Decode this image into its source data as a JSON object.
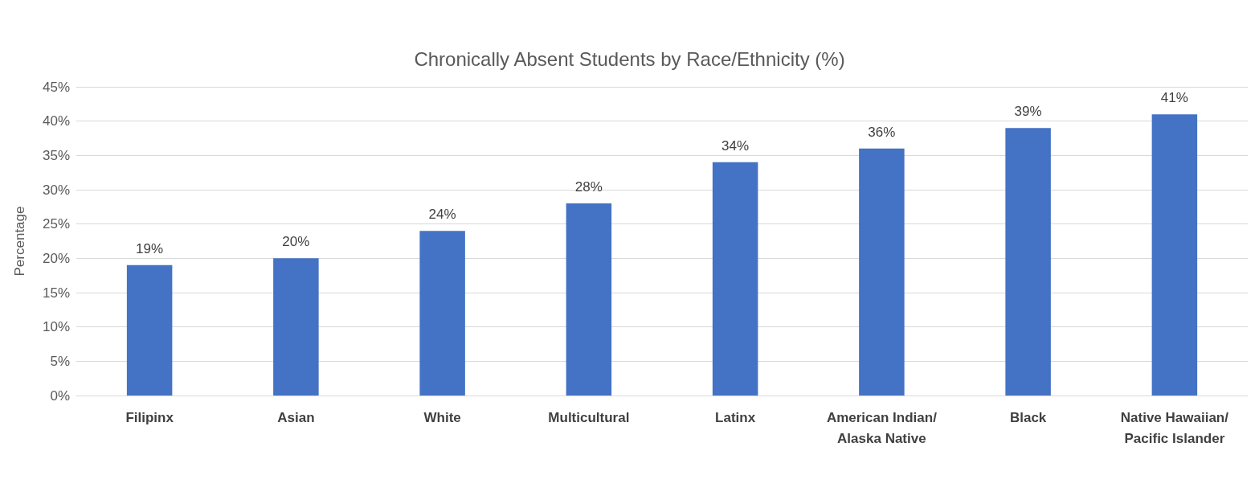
{
  "chart_data": {
    "type": "bar",
    "title": "Chronically Absent Students by Race/Ethnicity (%)",
    "ylabel": "Percentage",
    "categories": [
      "Filipinx",
      "Asian",
      "White",
      "Multicultural",
      "Latinx",
      "American Indian/Alaska Native",
      "Black",
      "Native Hawaiian/Pacific Islander"
    ],
    "values": [
      19,
      20,
      24,
      28,
      34,
      36,
      39,
      41
    ],
    "value_labels": [
      "19%",
      "20%",
      "24%",
      "28%",
      "34%",
      "36%",
      "39%",
      "41%"
    ],
    "color": "#4472c4",
    "ylim": [
      0,
      45
    ],
    "yticks": [
      {
        "value": 0,
        "label": "0%"
      },
      {
        "value": 5,
        "label": "5%"
      },
      {
        "value": 10,
        "label": "10%"
      },
      {
        "value": 15,
        "label": "15%"
      },
      {
        "value": 20,
        "label": "20%"
      },
      {
        "value": 25,
        "label": "25%"
      },
      {
        "value": 30,
        "label": "30%"
      },
      {
        "value": 35,
        "label": "35%"
      },
      {
        "value": 40,
        "label": "40%"
      },
      {
        "value": 45,
        "label": "45%"
      }
    ],
    "grid": "y"
  }
}
